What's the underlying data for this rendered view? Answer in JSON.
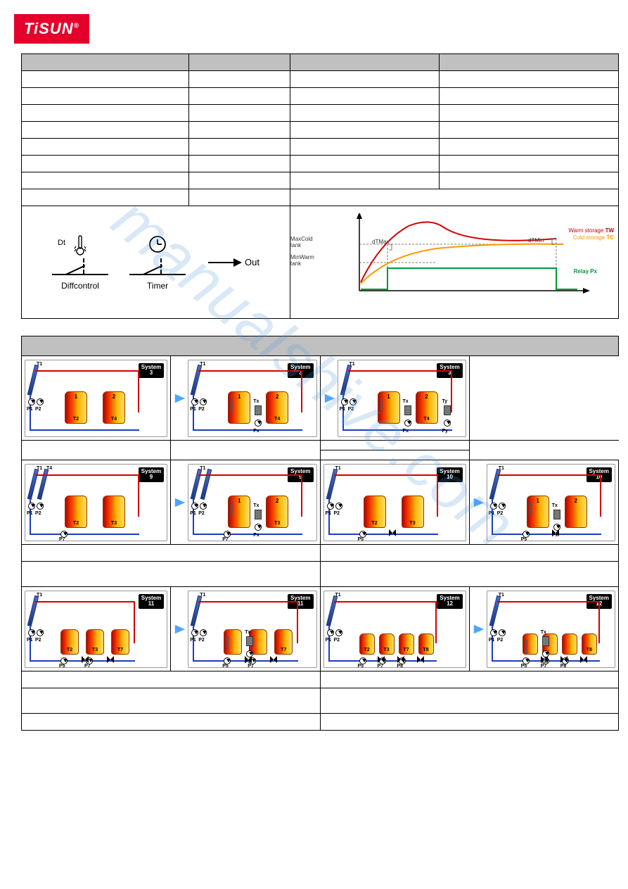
{
  "logo_text": "TiSUN",
  "logo_reg": "®",
  "watermark": "manualshive.com",
  "diff_diagram": {
    "dt_label": "Dt",
    "left_label": "Diffcontrol",
    "right_label": "Timer",
    "out_label": "Out"
  },
  "curve_chart": {
    "max_cold_label": "MaxCold",
    "max_cold_sub": "tank",
    "min_warm_label": "MinWarm",
    "min_warm_sub": "tank",
    "dtmax_label": "dTMax",
    "dtmin_label": "dTMin",
    "warm_storage_label": "Warm storage",
    "warm_storage_bold": "TW",
    "cold_storage_label": "Cold storage",
    "cold_storage_bold": "TC",
    "relay_label": "Relay Px",
    "colors": {
      "warm": "#d40000",
      "cold": "#ff9900",
      "relay": "#009933",
      "axis": "#000000",
      "dashed": "#555555"
    }
  },
  "systems": {
    "row1": [
      {
        "num": "3",
        "tanks": [
          {
            "n": "1",
            "t": "T2"
          },
          {
            "n": "2",
            "t": "T4"
          }
        ],
        "pumps": [
          "P1",
          "P2"
        ],
        "has_coil": false,
        "has_rect": false
      },
      {
        "num": "3",
        "tanks": [
          {
            "n": "1",
            "t": ""
          },
          {
            "n": "2",
            "t": "T4"
          }
        ],
        "pumps": [
          "P1",
          "P2"
        ],
        "has_coil": true,
        "has_rect": true,
        "rect_label": "Tx",
        "rect_p": "Px"
      },
      {
        "num": "3",
        "tanks": [
          {
            "n": "1",
            "t": ""
          },
          {
            "n": "2",
            "t": "T4"
          }
        ],
        "pumps": [
          "P1",
          "P2"
        ],
        "has_coil": true,
        "has_rect": true,
        "double_rect": true,
        "rect_label": "Tx",
        "rect_label2": "Ty",
        "rect_p": "Px",
        "rect_p2": "Py"
      }
    ],
    "row2": [
      {
        "num": "9",
        "tanks": [
          {
            "n": "",
            "t": "T2"
          },
          {
            "n": "",
            "t": "T3"
          }
        ],
        "pumps": [
          "P1",
          "P2",
          "P7"
        ],
        "two_coll": true,
        "tlabels": [
          "T1",
          "T4"
        ]
      },
      {
        "num": "9",
        "tanks": [
          {
            "n": "1",
            "t": ""
          },
          {
            "n": "2",
            "t": "T3"
          }
        ],
        "pumps": [
          "P1",
          "P2",
          "P7"
        ],
        "two_coll": true,
        "has_coil": true,
        "has_rect": true,
        "rect_label": "Tx",
        "rect_p": "Px"
      },
      {
        "num": "10",
        "tanks": [
          {
            "n": "",
            "t": "T2"
          },
          {
            "n": "",
            "t": "T3"
          }
        ],
        "pumps": [
          "P1",
          "P2",
          "P5"
        ],
        "valves": 1
      },
      {
        "num": "10",
        "tanks": [
          {
            "n": "1",
            "t": ""
          },
          {
            "n": "2",
            "t": ""
          }
        ],
        "pumps": [
          "P1",
          "P2",
          "P5"
        ],
        "has_coil": true,
        "has_rect": true,
        "rect_label": "Tx",
        "rect_p": "Px",
        "valves": 1
      }
    ],
    "row3": [
      {
        "num": "11",
        "tanks": [
          {
            "n": "",
            "t": "T2"
          },
          {
            "n": "",
            "t": "T3"
          },
          {
            "n": "",
            "t": "T7"
          }
        ],
        "pumps": [
          "P1",
          "P2",
          "P5",
          "P7"
        ],
        "valves": 2
      },
      {
        "num": "11",
        "tanks": [
          {
            "n": "",
            "t": ""
          },
          {
            "n": "",
            "t": ""
          },
          {
            "n": "",
            "t": "T7"
          }
        ],
        "pumps": [
          "P1",
          "P2",
          "P5",
          "P7"
        ],
        "has_coil": true,
        "has_rect": true,
        "rect_label": "Tx",
        "rect_p": "Px",
        "valves": 2
      },
      {
        "num": "12",
        "tanks": [
          {
            "n": "",
            "t": "T2"
          },
          {
            "n": "",
            "t": "T3"
          },
          {
            "n": "",
            "t": "T7"
          },
          {
            "n": "",
            "t": "T8"
          }
        ],
        "pumps": [
          "P1",
          "P2",
          "P5",
          "P7",
          "P8"
        ],
        "valves": 3
      },
      {
        "num": "12",
        "tanks": [
          {
            "n": "",
            "t": ""
          },
          {
            "n": "",
            "t": ""
          },
          {
            "n": "",
            "t": ""
          },
          {
            "n": "",
            "t": "T8"
          }
        ],
        "pumps": [
          "P1",
          "P2",
          "P5",
          "P7",
          "P8"
        ],
        "has_coil": true,
        "has_rect": true,
        "rect_label": "Tx",
        "rect_p": "Px",
        "valves": 3
      }
    ]
  },
  "colors": {
    "hot_pipe": "#d40000",
    "cold_pipe": "#1a3dc4",
    "tank_grad_from": "#b80000",
    "tank_grad_to": "#ffe066",
    "arrow": "#4da6ff"
  }
}
